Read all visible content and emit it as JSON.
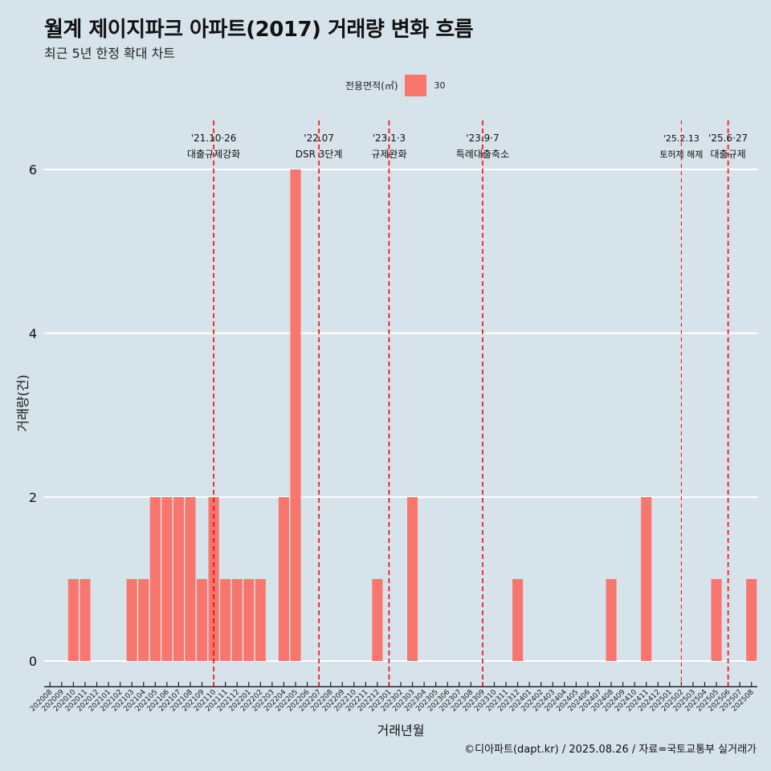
{
  "title": "월계 제이지파크 아파트(2017) 거래량 변화 흐름",
  "subtitle": "최근 5년 한정 확대 차트",
  "legend": {
    "title": "전용면적(㎡)",
    "item": "30",
    "color": "#f8766d"
  },
  "credit": "©디아파트(dapt.kr) / 2025.08.26 / 자료=국토교통부 실거래가",
  "chart_data": {
    "type": "bar",
    "xlabel": "거래년월",
    "ylabel": "거래량(건)",
    "ylim": [
      -0.3,
      6.6
    ],
    "yticks": [
      0,
      2,
      4,
      6
    ],
    "bar_color": "#f8766d",
    "categories": [
      "202008",
      "202009",
      "202010",
      "202011",
      "202012",
      "202101",
      "202102",
      "202103",
      "202104",
      "202105",
      "202106",
      "202107",
      "202108",
      "202109",
      "202110",
      "202111",
      "202112",
      "202201",
      "202202",
      "202203",
      "202204",
      "202205",
      "202206",
      "202207",
      "202208",
      "202209",
      "202210",
      "202211",
      "202212",
      "202301",
      "202302",
      "202303",
      "202304",
      "202305",
      "202306",
      "202307",
      "202308",
      "202309",
      "202310",
      "202311",
      "202312",
      "202401",
      "202402",
      "202403",
      "202404",
      "202405",
      "202406",
      "202407",
      "202408",
      "202409",
      "202410",
      "202411",
      "202412",
      "202501",
      "202502",
      "202503",
      "202504",
      "202505",
      "202506",
      "202507",
      "202508"
    ],
    "values": [
      0,
      0,
      1,
      1,
      0,
      0,
      0,
      1,
      1,
      2,
      2,
      2,
      2,
      1,
      2,
      1,
      1,
      1,
      1,
      0,
      2,
      6,
      0,
      0,
      0,
      0,
      0,
      0,
      1,
      0,
      0,
      2,
      0,
      0,
      0,
      0,
      0,
      0,
      0,
      0,
      1,
      0,
      0,
      0,
      0,
      0,
      0,
      0,
      1,
      0,
      0,
      2,
      0,
      0,
      0,
      0,
      0,
      1,
      0,
      0,
      1
    ],
    "events": [
      {
        "date": "'21.10·26",
        "label": "대출규제강화",
        "category": "202110",
        "style": "dashed"
      },
      {
        "date": "'22.07",
        "label": "DSR 3단계",
        "category": "202207",
        "style": "dashed"
      },
      {
        "date": "'23.1·3",
        "label": "규제완화",
        "category": "202301",
        "style": "dashed"
      },
      {
        "date": "'23.9·7",
        "label": "특례대출축소",
        "category": "202309",
        "style": "dashed"
      },
      {
        "date": "'25.2.13",
        "label": "토허제 해제",
        "category": "202502",
        "style": "thin"
      },
      {
        "date": "'25.6·27",
        "label": "대출규제",
        "category": "202506",
        "style": "dashed"
      }
    ]
  }
}
